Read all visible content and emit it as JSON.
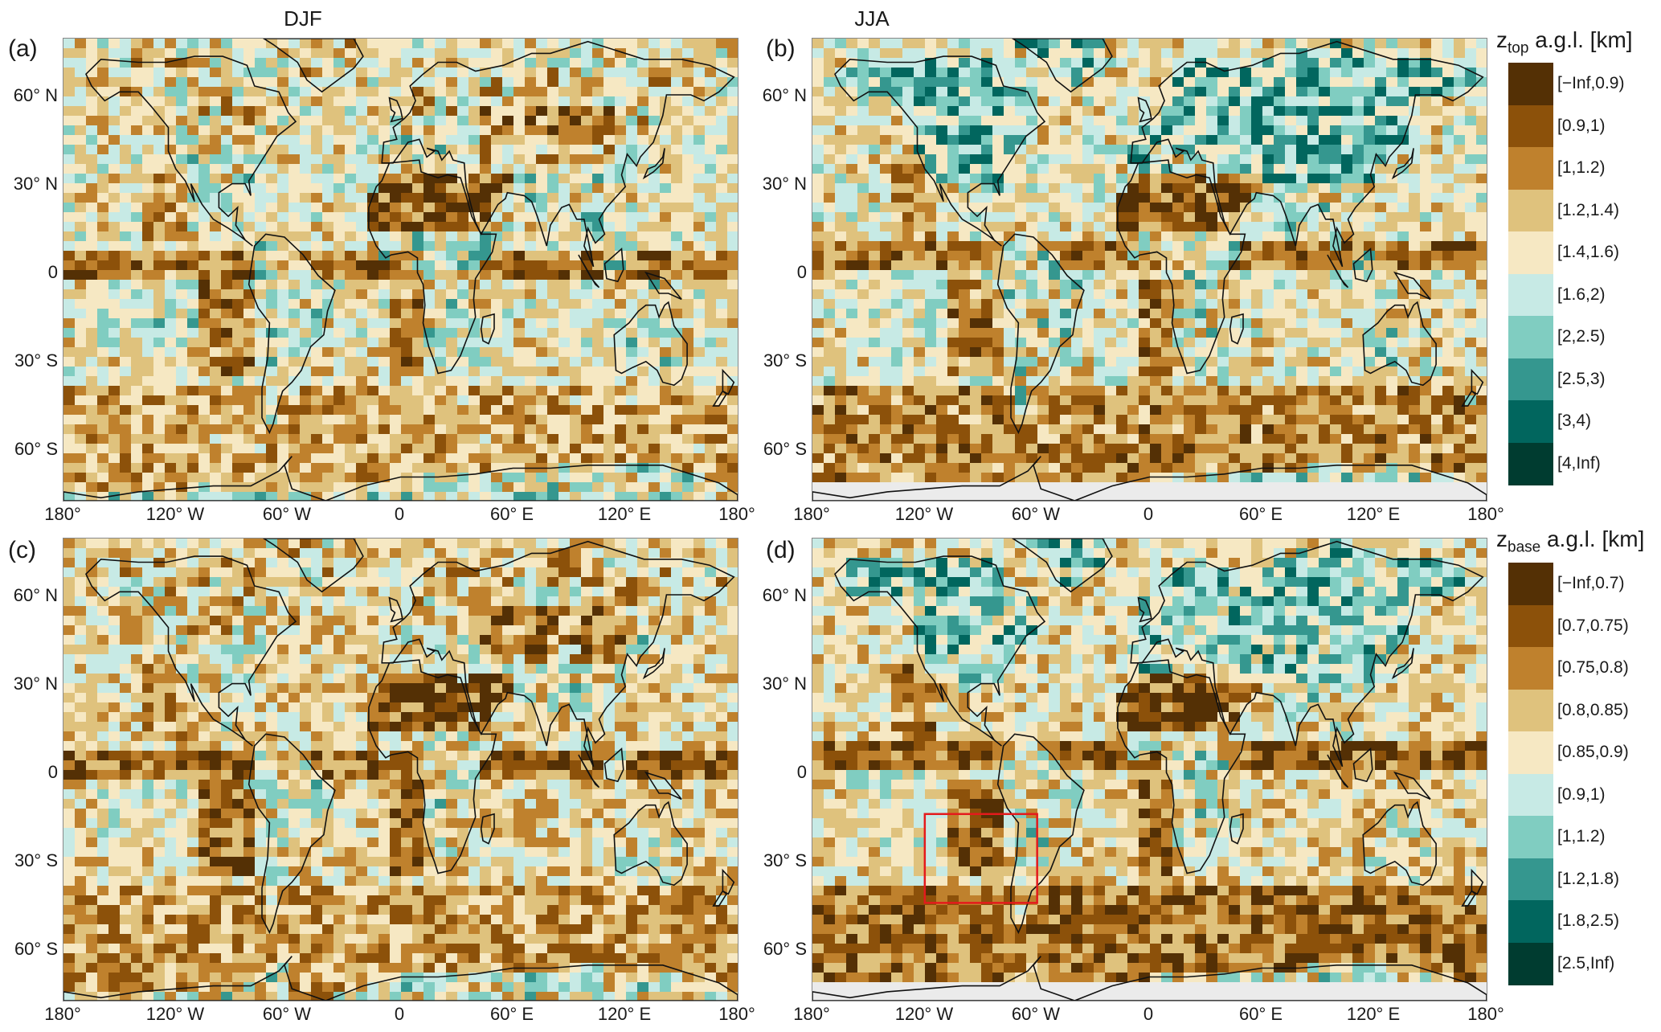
{
  "columns": {
    "left": "DJF",
    "right": "JJA"
  },
  "panels": [
    {
      "id": "a",
      "label": "(a)",
      "season": "DJF",
      "variable": "ztop"
    },
    {
      "id": "b",
      "label": "(b)",
      "season": "JJA",
      "variable": "ztop"
    },
    {
      "id": "c",
      "label": "(c)",
      "season": "DJF",
      "variable": "zbase"
    },
    {
      "id": "d",
      "label": "(d)",
      "season": "JJA",
      "variable": "zbase",
      "highlight_box": {
        "lon": [
          -120,
          -60
        ],
        "lat": [
          -45,
          -15
        ],
        "color": "#e41a1c"
      }
    }
  ],
  "axes": {
    "lat_ticks": [
      "60° N",
      "30° N",
      "0",
      "30° S",
      "60° S"
    ],
    "lon_ticks": [
      "180°",
      "120° W",
      "60° W",
      "0",
      "60° E",
      "120° E",
      "180°"
    ]
  },
  "legend_top": {
    "title_main": "z",
    "title_sub": "top",
    "title_rest": " a.g.l. [km]",
    "bins": [
      "[−Inf,0.9)",
      "[0.9,1)",
      "[1,1.2)",
      "[1.2,1.4)",
      "[1.4,1.6)",
      "[1.6,2)",
      "[2,2.5)",
      "[2.5,3)",
      "[3,4)",
      "[4,Inf)"
    ]
  },
  "legend_base": {
    "title_main": "z",
    "title_sub": "base",
    "title_rest": " a.g.l. [km]",
    "bins": [
      "[−Inf,0.7)",
      "[0.7,0.75)",
      "[0.75,0.8)",
      "[0.8,0.85)",
      "[0.85,0.9)",
      "[0.9,1)",
      "[1,1.2)",
      "[1.2,1.8)",
      "[1.8,2.5)",
      "[2.5,Inf)"
    ]
  },
  "palette": [
    "#543005",
    "#8c510a",
    "#bf812d",
    "#dfc27d",
    "#f6e8c3",
    "#c7eae5",
    "#80cdc1",
    "#35978f",
    "#01665e",
    "#003c30"
  ]
}
